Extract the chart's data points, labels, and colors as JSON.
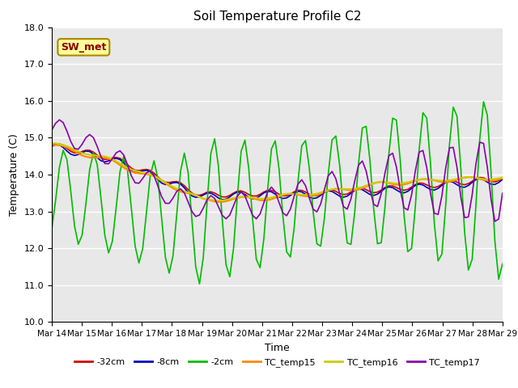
{
  "title": "Soil Temperature Profile C2",
  "xlabel": "Time",
  "ylabel": "Temperature (C)",
  "ylim": [
    10.0,
    18.0
  ],
  "yticks": [
    10.0,
    11.0,
    12.0,
    13.0,
    14.0,
    15.0,
    16.0,
    17.0,
    18.0
  ],
  "xtick_labels": [
    "Mar 14",
    "Mar 15",
    "Mar 16",
    "Mar 17",
    "Mar 18",
    "Mar 19",
    "Mar 20",
    "Mar 21",
    "Mar 22",
    "Mar 23",
    "Mar 24",
    "Mar 25",
    "Mar 26",
    "Mar 27",
    "Mar 28",
    "Mar 29"
  ],
  "annotation": "SW_met",
  "bg_color": "#e8e8e8",
  "grid_color": "#ffffff",
  "series_order": [
    "-32cm",
    "-8cm",
    "-2cm",
    "TC_temp15",
    "TC_temp16",
    "TC_temp17"
  ],
  "series": {
    "-32cm": {
      "color": "#cc0000",
      "linewidth": 1.2
    },
    "-8cm": {
      "color": "#0000bb",
      "linewidth": 1.2
    },
    "-2cm": {
      "color": "#00bb00",
      "linewidth": 1.2
    },
    "TC_temp15": {
      "color": "#ff8800",
      "linewidth": 1.5
    },
    "TC_temp16": {
      "color": "#cccc00",
      "linewidth": 1.5
    },
    "TC_temp17": {
      "color": "#8800aa",
      "linewidth": 1.2
    }
  },
  "legend": [
    {
      "label": "-32cm",
      "color": "#cc0000"
    },
    {
      "label": "-8cm",
      "color": "#0000bb"
    },
    {
      "label": "-2cm",
      "color": "#00bb00"
    },
    {
      "label": "TC_temp15",
      "color": "#ff8800"
    },
    {
      "label": "TC_temp16",
      "color": "#cccc00"
    },
    {
      "label": "TC_temp17",
      "color": "#8800aa"
    }
  ]
}
